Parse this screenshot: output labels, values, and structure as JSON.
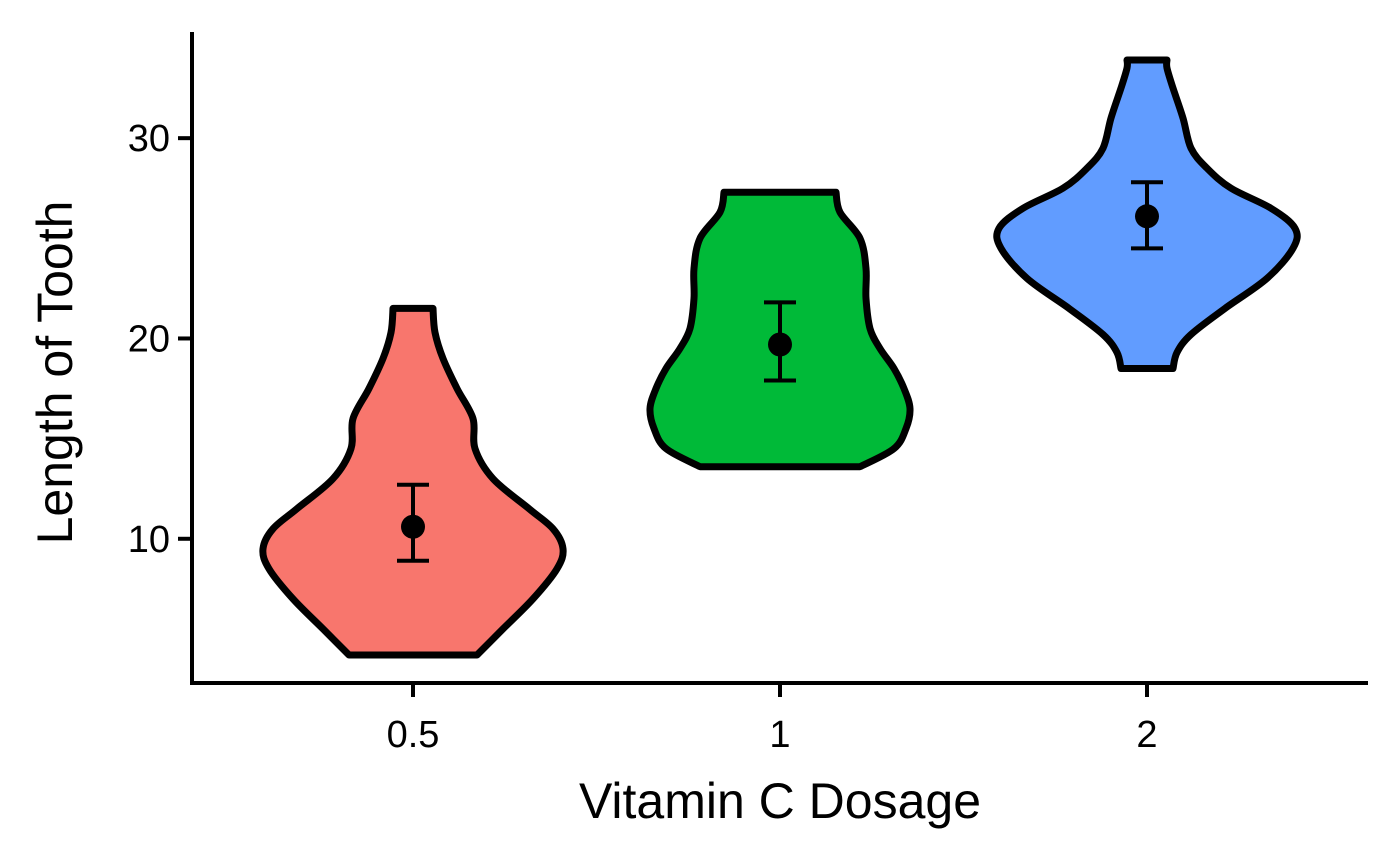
{
  "chart_data": {
    "type": "violin",
    "xlabel": "Vitamin C Dosage",
    "ylabel": "Length of Tooth",
    "categories": [
      "0.5",
      "1",
      "2"
    ],
    "ylim": [
      2.8,
      35.3
    ],
    "yticks": [
      10,
      20,
      30
    ],
    "colors": [
      "#F8766D",
      "#00BA38",
      "#619CFF"
    ],
    "outline_color": "#000000",
    "grid": false,
    "legend": "none",
    "groups": [
      {
        "category": "0.5",
        "fill": "#F8766D",
        "mean": 10.6,
        "error_low": 8.9,
        "error_high": 12.7,
        "min": 4.2,
        "max": 21.5,
        "profile": [
          [
            4.2,
            0.32
          ],
          [
            5.5,
            0.45
          ],
          [
            7.0,
            0.6
          ],
          [
            8.5,
            0.72
          ],
          [
            9.5,
            0.75
          ],
          [
            10.5,
            0.7
          ],
          [
            11.5,
            0.58
          ],
          [
            13.0,
            0.4
          ],
          [
            14.5,
            0.31
          ],
          [
            16.0,
            0.3
          ],
          [
            17.5,
            0.22
          ],
          [
            19.0,
            0.15
          ],
          [
            20.3,
            0.11
          ],
          [
            21.5,
            0.1
          ]
        ]
      },
      {
        "category": "1",
        "fill": "#00BA38",
        "mean": 19.7,
        "error_low": 17.9,
        "error_high": 21.8,
        "min": 13.6,
        "max": 27.3,
        "profile": [
          [
            13.6,
            0.4
          ],
          [
            14.5,
            0.57
          ],
          [
            15.5,
            0.63
          ],
          [
            16.5,
            0.65
          ],
          [
            17.5,
            0.62
          ],
          [
            18.5,
            0.57
          ],
          [
            19.5,
            0.5
          ],
          [
            20.5,
            0.45
          ],
          [
            22.0,
            0.43
          ],
          [
            23.5,
            0.43
          ],
          [
            25.0,
            0.4
          ],
          [
            26.3,
            0.3
          ],
          [
            27.3,
            0.28
          ]
        ]
      },
      {
        "category": "2",
        "fill": "#619CFF",
        "mean": 26.1,
        "error_low": 24.5,
        "error_high": 27.8,
        "min": 18.5,
        "max": 33.9,
        "profile": [
          [
            18.5,
            0.13
          ],
          [
            19.3,
            0.15
          ],
          [
            20.2,
            0.22
          ],
          [
            21.5,
            0.39
          ],
          [
            23.0,
            0.6
          ],
          [
            24.5,
            0.73
          ],
          [
            25.5,
            0.74
          ],
          [
            26.5,
            0.62
          ],
          [
            27.5,
            0.42
          ],
          [
            28.5,
            0.3
          ],
          [
            29.5,
            0.22
          ],
          [
            31.0,
            0.18
          ],
          [
            32.5,
            0.13
          ],
          [
            33.5,
            0.1
          ],
          [
            33.9,
            0.1
          ]
        ]
      }
    ]
  }
}
